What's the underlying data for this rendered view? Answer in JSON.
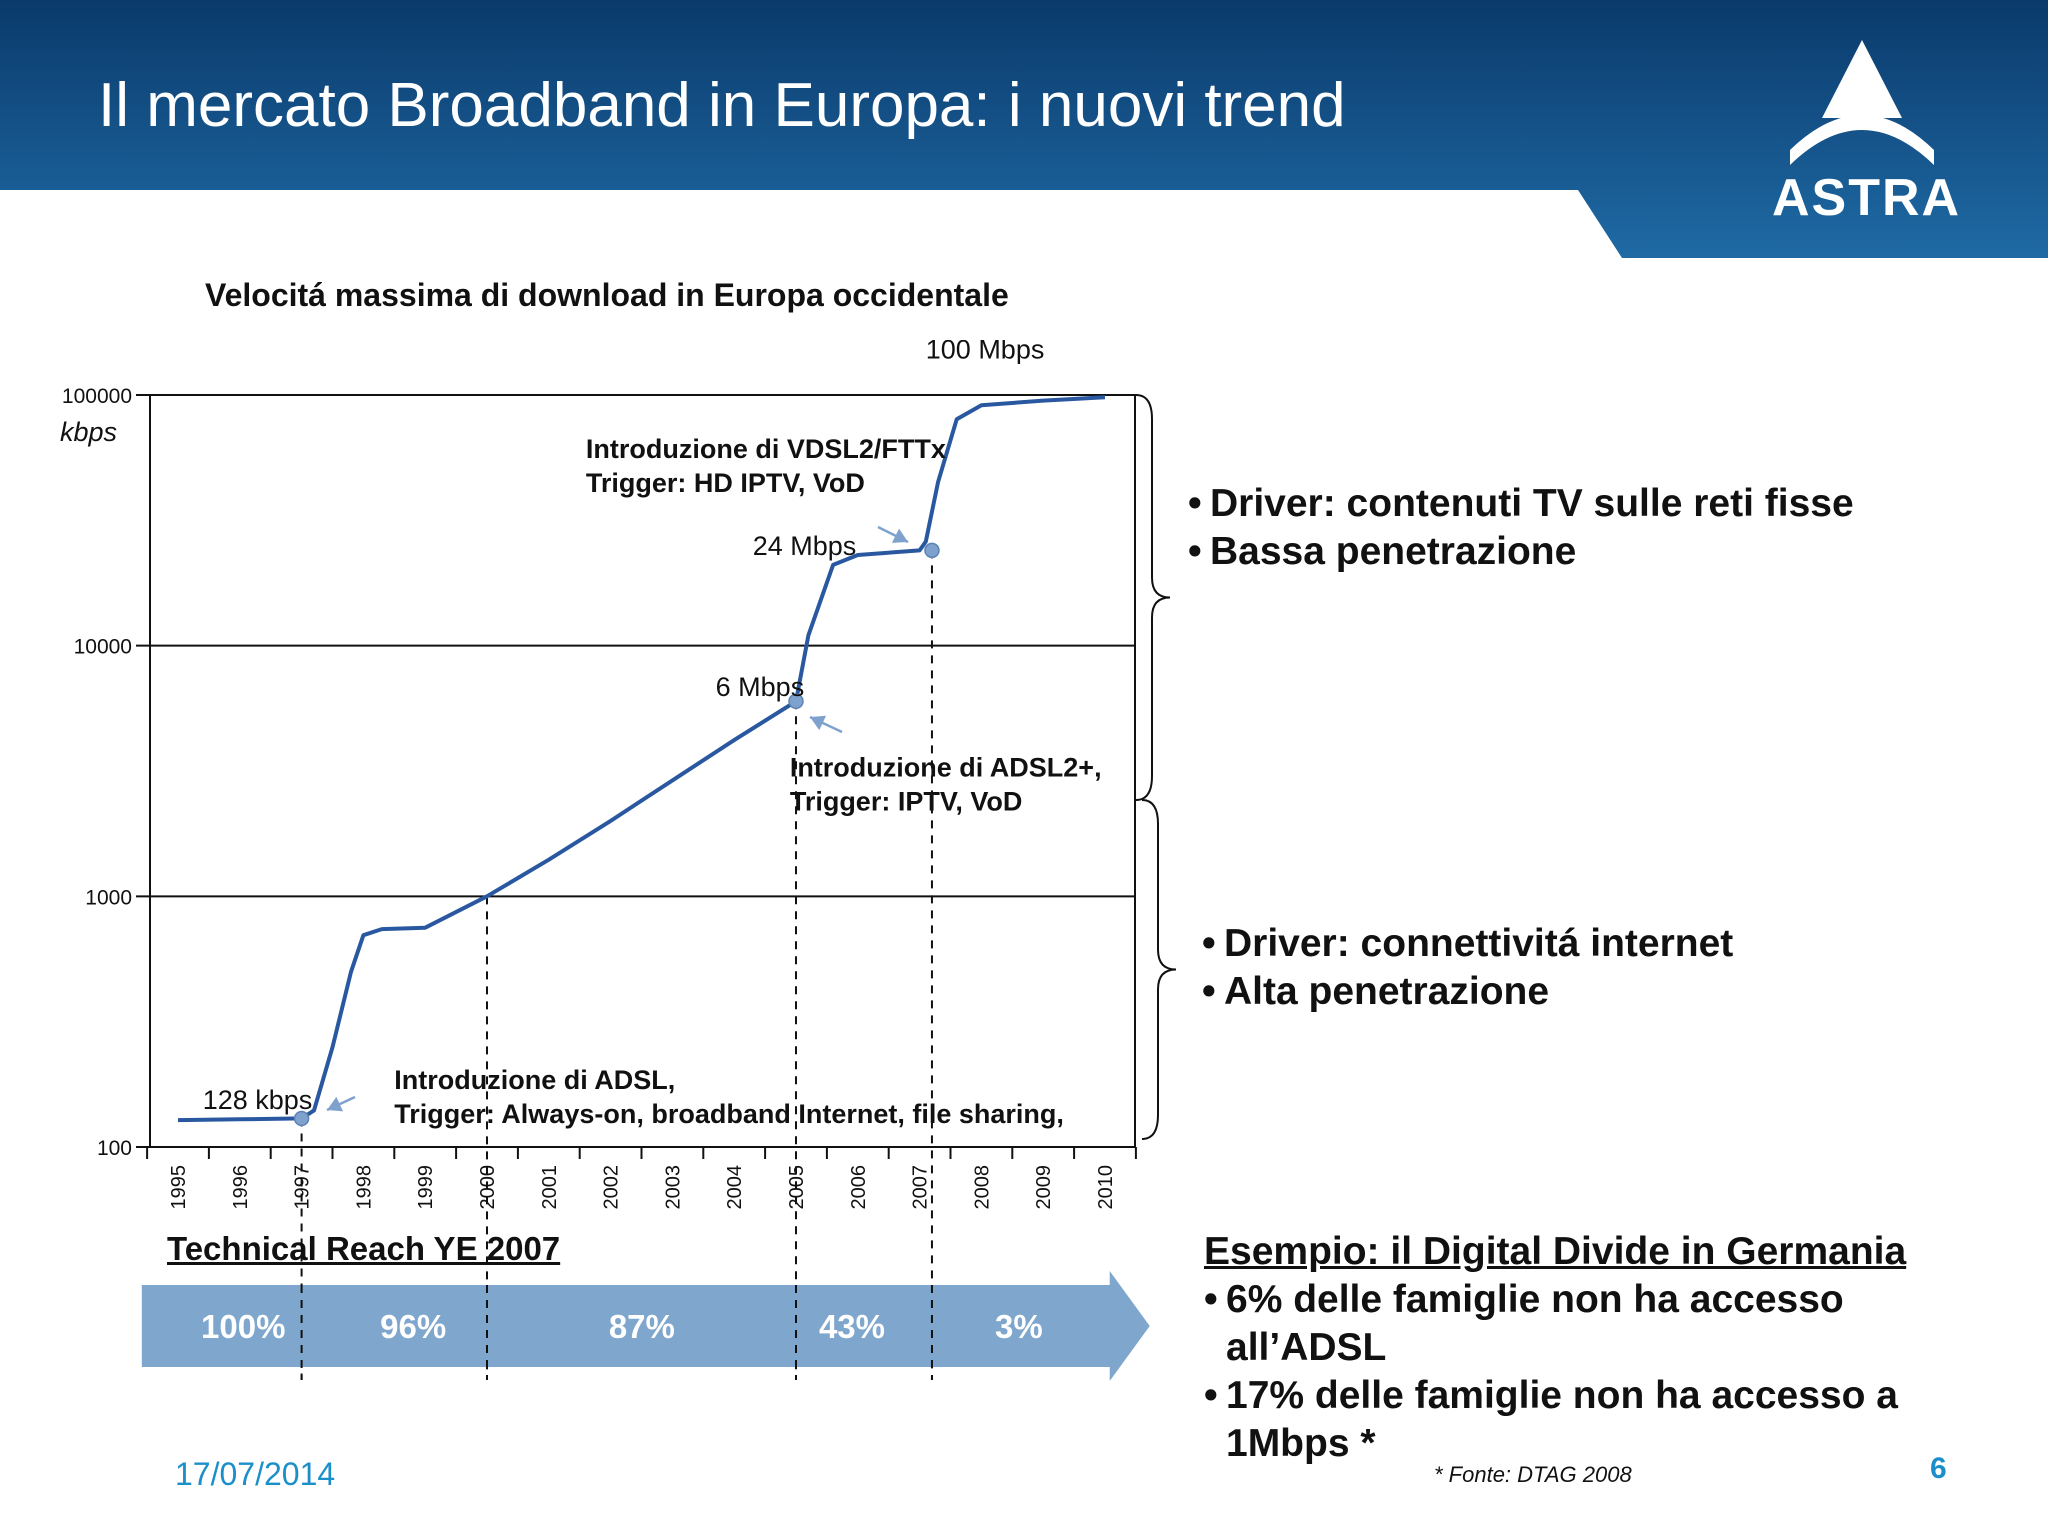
{
  "slide": {
    "title": "Il mercato Broadband in Europa: i nuovi trend",
    "logo_text": "ASTRA",
    "date": "17/07/2014",
    "page_number": "6",
    "source": "* Fonte: DTAG 2008"
  },
  "colors": {
    "header_dark": "#0a3a6b",
    "header_light": "#1f6aa5",
    "curve": "#2a58a0",
    "arrow_band": "#7fa6cc",
    "footer_accent": "#1b8fc9"
  },
  "chart_data": {
    "type": "line",
    "title": "Velocitá massima di download in Europa occidentale",
    "ylabel": "kbps",
    "yscale": "log",
    "ylim": [
      100,
      100000
    ],
    "yticks": [
      "100000",
      "10000",
      "1000",
      "100"
    ],
    "xlim": [
      1995,
      2010
    ],
    "xticks": [
      "1995",
      "1996",
      "1997",
      "1998",
      "1999",
      "2000",
      "2001",
      "2002",
      "2003",
      "2004",
      "2005",
      "2006",
      "2007",
      "2008",
      "2009",
      "2010"
    ],
    "series": [
      {
        "x": [
          1995.0,
          1996.0,
          1997.0,
          1997.2,
          1997.5,
          1997.8,
          1998.0,
          1998.3,
          1999.0,
          2000.0,
          2001.0,
          2002.0,
          2003.0,
          2004.0,
          2005.0,
          2005.2,
          2005.6,
          2006.0,
          2007.0,
          2007.1,
          2007.3,
          2007.6,
          2008.0,
          2009.0,
          2010.0
        ],
        "y": [
          128,
          129,
          130,
          140,
          250,
          500,
          700,
          740,
          750,
          1000,
          1400,
          2000,
          2900,
          4200,
          6000,
          11000,
          21000,
          23000,
          24000,
          26000,
          45000,
          80000,
          91000,
          95000,
          98000
        ]
      }
    ],
    "points": [
      {
        "x": 1997,
        "y": 130
      },
      {
        "x": 2005,
        "y": 6000
      },
      {
        "x": 2007.2,
        "y": 24000
      }
    ],
    "value_labels": [
      {
        "text": "100 Mbps",
        "x": 2007.1,
        "y": 140000
      },
      {
        "text": "24 Mbps",
        "x": 2004.3,
        "y": 23000
      },
      {
        "text": "6 Mbps",
        "x": 2003.7,
        "y": 6300
      },
      {
        "text": "128 kbps",
        "x": 1995.4,
        "y": 142
      }
    ],
    "annotations": [
      {
        "line1": "Introduzione di VDSL2/FTTx",
        "line2": "Trigger: HD IPTV, VoD",
        "x": 2001.6,
        "y": 56000
      },
      {
        "line1": "Introduzione di ADSL2+,",
        "line2": "Trigger: IPTV, VoD",
        "x": 2004.9,
        "y": 3000
      },
      {
        "line1": "Introduzione di ADSL,",
        "line2": "Trigger: Always-on, broadband Internet, file sharing,",
        "x": 1998.5,
        "y": 170
      }
    ],
    "technical_reach": {
      "title": "Technical Reach YE 2007",
      "segments": [
        {
          "label": "100%",
          "from": 1994.9,
          "to": 1997.6
        },
        {
          "label": "96%",
          "from": 1997.6,
          "to": 2000.4
        },
        {
          "label": "87%",
          "from": 2000.4,
          "to": 2005.0
        },
        {
          "label": "43%",
          "from": 2005.0,
          "to": 2007.2
        },
        {
          "label": "3%",
          "from": 2007.2,
          "to": 2010.4
        }
      ]
    }
  },
  "bullets_top": [
    "Driver: contenuti TV sulle reti fisse",
    "Bassa penetrazione"
  ],
  "bullets_bottom": [
    "Driver: connettivitá internet",
    "Alta penetrazione"
  ],
  "example": {
    "title": "Esempio: il Digital Divide in Germania",
    "items": [
      "6% delle famiglie non ha accesso all’ADSL",
      "17% delle famiglie non ha accesso a 1Mbps *"
    ]
  }
}
